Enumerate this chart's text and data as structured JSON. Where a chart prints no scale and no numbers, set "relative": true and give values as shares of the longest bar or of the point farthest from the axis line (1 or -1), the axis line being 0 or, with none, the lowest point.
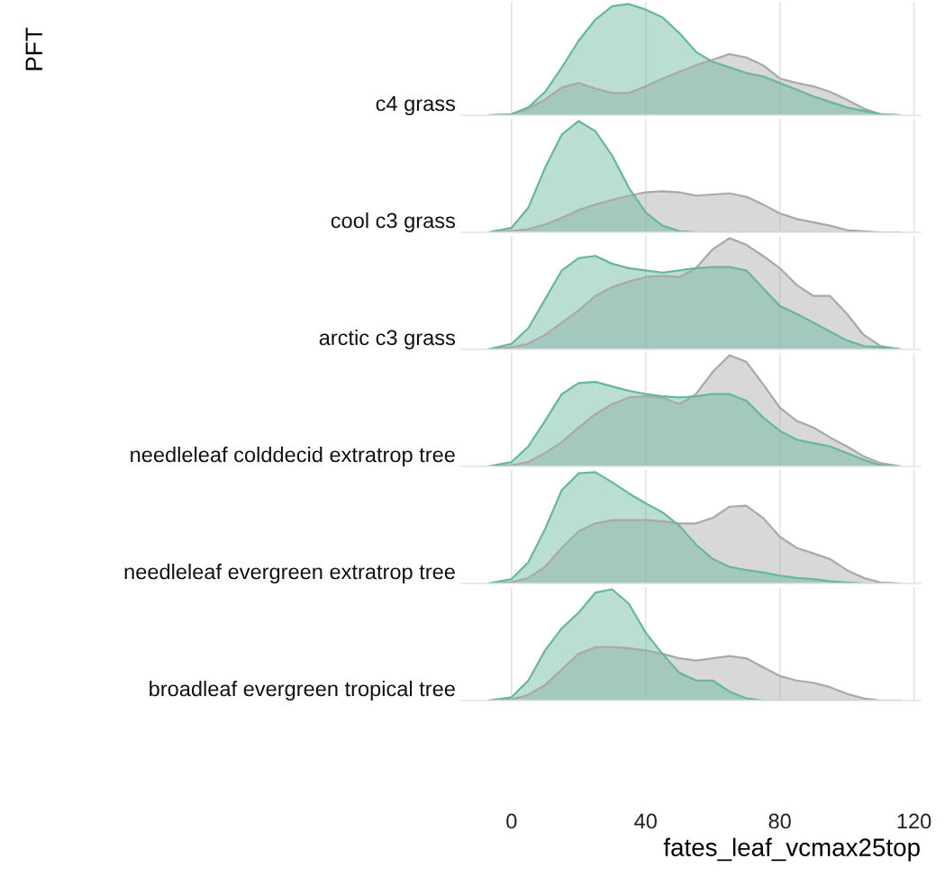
{
  "chart_data": [
    {
      "type": "area",
      "relative": true,
      "title": "c4 grass",
      "ylabel": "PFT",
      "x": [
        -7,
        0,
        5,
        10,
        15,
        20,
        25,
        30,
        35,
        40,
        45,
        50,
        55,
        60,
        65,
        70,
        75,
        80,
        85,
        90,
        95,
        100,
        105,
        110,
        116
      ],
      "xlim": [
        -15,
        122
      ],
      "xticks": [
        0,
        40,
        80,
        120
      ],
      "grid": "x",
      "tick_labels": false,
      "series": [
        {
          "color": "#a9a9a9",
          "values": [
            0,
            0.01,
            0.06,
            0.14,
            0.25,
            0.29,
            0.24,
            0.2,
            0.2,
            0.26,
            0.33,
            0.39,
            0.45,
            0.5,
            0.55,
            0.52,
            0.45,
            0.33,
            0.29,
            0.26,
            0.21,
            0.14,
            0.06,
            0.01,
            0
          ]
        },
        {
          "color": "#69b6a0",
          "values": [
            0,
            0.01,
            0.07,
            0.21,
            0.43,
            0.67,
            0.86,
            0.98,
            1,
            0.95,
            0.88,
            0.74,
            0.57,
            0.48,
            0.43,
            0.38,
            0.35,
            0.29,
            0.23,
            0.17,
            0.12,
            0.07,
            0.04,
            0.01,
            0
          ]
        }
      ]
    },
    {
      "type": "area",
      "relative": true,
      "title": "cool c3 grass",
      "x": [
        -7,
        0,
        5,
        10,
        15,
        20,
        25,
        30,
        35,
        40,
        45,
        50,
        55,
        60,
        65,
        70,
        75,
        80,
        85,
        90,
        95,
        100,
        105,
        110,
        116
      ],
      "xlim": [
        -15,
        122
      ],
      "xticks": [
        0,
        40,
        80,
        120
      ],
      "grid": "x",
      "tick_labels": false,
      "series": [
        {
          "color": "#a9a9a9",
          "values": [
            0,
            0.01,
            0.03,
            0.07,
            0.13,
            0.2,
            0.25,
            0.29,
            0.33,
            0.36,
            0.37,
            0.36,
            0.33,
            0.34,
            0.35,
            0.32,
            0.25,
            0.17,
            0.12,
            0.09,
            0.06,
            0.02,
            0.01,
            0,
            0
          ]
        },
        {
          "color": "#69b6a0",
          "values": [
            0,
            0.04,
            0.22,
            0.58,
            0.88,
            1,
            0.91,
            0.69,
            0.4,
            0.18,
            0.06,
            0.01,
            0,
            0,
            0,
            0,
            0,
            0,
            0,
            0,
            0,
            0,
            0,
            0,
            0
          ]
        }
      ]
    },
    {
      "type": "area",
      "relative": true,
      "title": "arctic c3 grass",
      "x": [
        -7,
        0,
        5,
        10,
        15,
        20,
        25,
        30,
        35,
        40,
        45,
        50,
        55,
        60,
        65,
        70,
        75,
        80,
        85,
        90,
        95,
        100,
        105,
        110,
        116
      ],
      "xlim": [
        -15,
        122
      ],
      "xticks": [
        0,
        40,
        80,
        120
      ],
      "grid": "x",
      "tick_labels": false,
      "series": [
        {
          "color": "#a9a9a9",
          "values": [
            0,
            0.02,
            0.05,
            0.13,
            0.24,
            0.35,
            0.48,
            0.56,
            0.61,
            0.65,
            0.66,
            0.65,
            0.73,
            0.9,
            1,
            0.94,
            0.84,
            0.73,
            0.58,
            0.48,
            0.48,
            0.32,
            0.13,
            0.03,
            0
          ]
        },
        {
          "color": "#69b6a0",
          "values": [
            0,
            0.05,
            0.19,
            0.45,
            0.71,
            0.82,
            0.84,
            0.77,
            0.73,
            0.71,
            0.69,
            0.71,
            0.73,
            0.74,
            0.74,
            0.71,
            0.55,
            0.39,
            0.32,
            0.24,
            0.16,
            0.08,
            0.03,
            0.02,
            0
          ]
        }
      ]
    },
    {
      "type": "area",
      "relative": true,
      "title": "needleleaf colddecid extratrop tree",
      "x": [
        -7,
        0,
        5,
        10,
        15,
        20,
        25,
        30,
        35,
        40,
        45,
        50,
        55,
        60,
        65,
        70,
        75,
        80,
        85,
        90,
        95,
        100,
        105,
        110,
        116
      ],
      "xlim": [
        -15,
        122
      ],
      "xticks": [
        0,
        40,
        80,
        120
      ],
      "grid": "x",
      "tick_labels": false,
      "series": [
        {
          "color": "#a9a9a9",
          "values": [
            0,
            0.01,
            0.04,
            0.12,
            0.22,
            0.35,
            0.47,
            0.56,
            0.62,
            0.63,
            0.62,
            0.56,
            0.65,
            0.85,
            1,
            0.94,
            0.74,
            0.53,
            0.41,
            0.35,
            0.26,
            0.18,
            0.09,
            0.03,
            0
          ]
        },
        {
          "color": "#69b6a0",
          "values": [
            0,
            0.04,
            0.18,
            0.41,
            0.65,
            0.75,
            0.76,
            0.72,
            0.68,
            0.65,
            0.63,
            0.62,
            0.63,
            0.65,
            0.65,
            0.59,
            0.44,
            0.32,
            0.24,
            0.21,
            0.18,
            0.12,
            0.06,
            0.01,
            0
          ]
        }
      ]
    },
    {
      "type": "area",
      "relative": true,
      "title": "needleleaf evergreen extratrop tree",
      "x": [
        -7,
        0,
        5,
        10,
        15,
        20,
        25,
        30,
        35,
        40,
        45,
        50,
        55,
        60,
        65,
        70,
        75,
        80,
        85,
        90,
        95,
        100,
        105,
        110,
        116
      ],
      "xlim": [
        -15,
        122
      ],
      "xticks": [
        0,
        40,
        80,
        120
      ],
      "grid": "x",
      "tick_labels": false,
      "series": [
        {
          "color": "#a9a9a9",
          "values": [
            0,
            0.01,
            0.05,
            0.15,
            0.32,
            0.47,
            0.54,
            0.57,
            0.57,
            0.57,
            0.56,
            0.54,
            0.54,
            0.59,
            0.69,
            0.7,
            0.59,
            0.42,
            0.32,
            0.27,
            0.22,
            0.12,
            0.05,
            0.01,
            0
          ]
        },
        {
          "color": "#69b6a0",
          "values": [
            0,
            0.04,
            0.19,
            0.49,
            0.84,
            0.99,
            1,
            0.91,
            0.81,
            0.72,
            0.64,
            0.52,
            0.35,
            0.22,
            0.15,
            0.12,
            0.1,
            0.07,
            0.05,
            0.04,
            0.02,
            0.01,
            0,
            0,
            0
          ]
        }
      ]
    },
    {
      "type": "area",
      "relative": true,
      "title": "broadleaf evergreen tropical tree",
      "xlabel": "fates_leaf_vcmax25top",
      "x": [
        -7,
        0,
        5,
        10,
        15,
        20,
        25,
        30,
        35,
        40,
        45,
        50,
        55,
        60,
        65,
        70,
        75,
        80,
        85,
        90,
        95,
        100,
        105,
        110,
        116
      ],
      "xlim": [
        -15,
        122
      ],
      "xticks": [
        0,
        40,
        80,
        120
      ],
      "grid": "x",
      "tick_labels": "x",
      "series": [
        {
          "color": "#a9a9a9",
          "values": [
            0,
            0.01,
            0.05,
            0.14,
            0.28,
            0.42,
            0.48,
            0.48,
            0.47,
            0.45,
            0.42,
            0.38,
            0.36,
            0.38,
            0.4,
            0.38,
            0.3,
            0.22,
            0.18,
            0.16,
            0.12,
            0.06,
            0.02,
            0,
            0
          ]
        },
        {
          "color": "#69b6a0",
          "values": [
            0,
            0.03,
            0.18,
            0.45,
            0.65,
            0.79,
            0.97,
            1,
            0.87,
            0.61,
            0.42,
            0.25,
            0.18,
            0.18,
            0.08,
            0.02,
            0,
            0,
            0,
            0,
            0,
            0,
            0,
            0,
            0
          ]
        }
      ]
    }
  ]
}
